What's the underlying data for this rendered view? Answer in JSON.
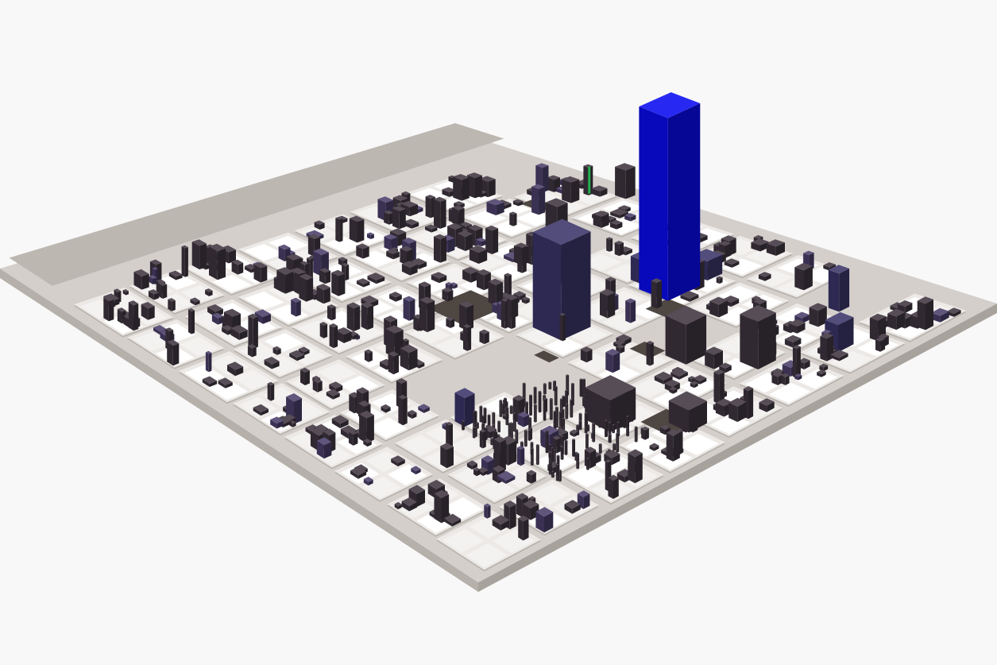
{
  "colors": {
    "background": "#f9f8f8",
    "platform_top": "#d4cfcb",
    "platform_left": "#b6b0aa",
    "platform_right": "#a8a29c",
    "district_top": "#ece9e6",
    "district_light": "#ffffff",
    "building_dark": "#3f3540",
    "building_navy": "#3b3569",
    "building_mid": "#4a3f6a",
    "highlight_blue": "#0a0cf0",
    "marker_green": "#22b14c",
    "flat_slab": "#4e4742"
  },
  "scene": {
    "type": "code-city-3d",
    "highlighted_building": "tallest-blue-building",
    "marker": "green-marker"
  }
}
